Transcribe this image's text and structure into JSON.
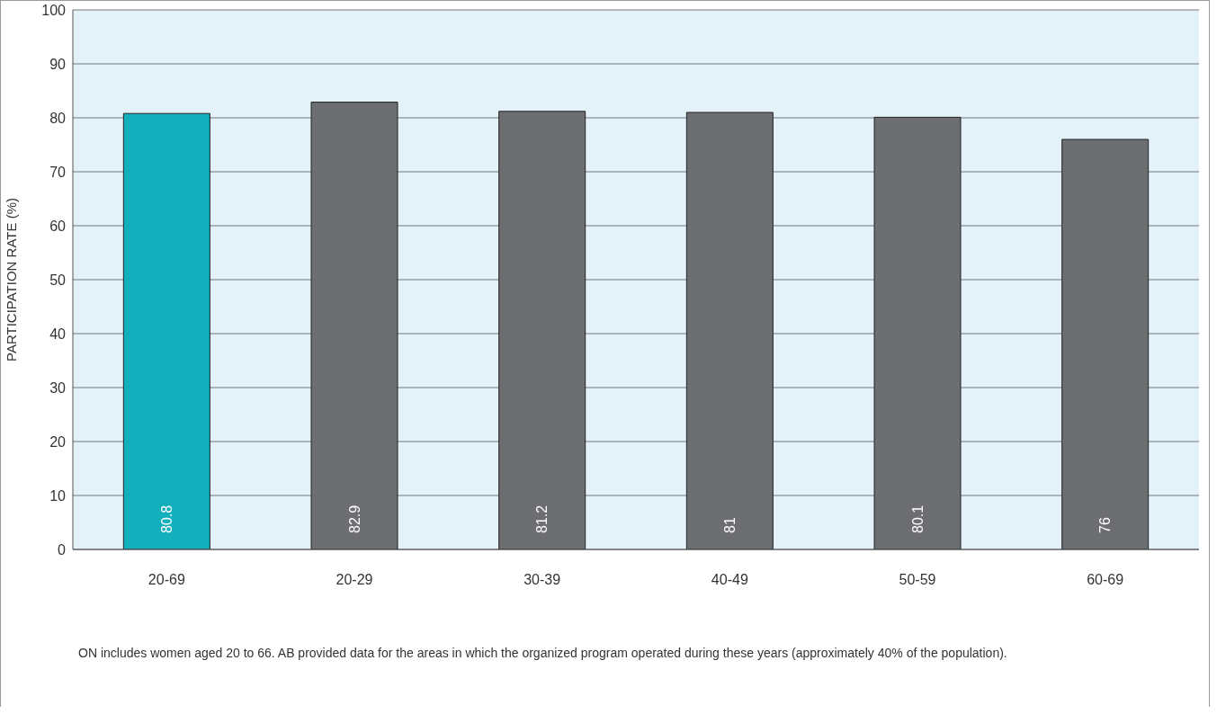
{
  "chart_data": {
    "type": "bar",
    "ylabel": "PARTICIPATION RATE (%)",
    "categories": [
      "20-69",
      "20-29",
      "30-39",
      "40-49",
      "50-59",
      "60-69"
    ],
    "values": [
      80.8,
      82.9,
      81.2,
      81,
      80.1,
      76
    ],
    "colors": [
      "#13afbd",
      "#6d6e71",
      "#6d6e71",
      "#6d6e71",
      "#6d6e71",
      "#6d6e71"
    ],
    "ylim": [
      0,
      100
    ],
    "yticks": [
      0,
      10,
      20,
      30,
      40,
      50,
      60,
      70,
      80,
      90,
      100
    ],
    "grid": "y",
    "data_labels": true,
    "legend": false,
    "annotations": [
      "ON includes women aged 20 to 66. AB provided data for the areas in which the organized program operated during these years (approximately 40% of the population)."
    ]
  }
}
